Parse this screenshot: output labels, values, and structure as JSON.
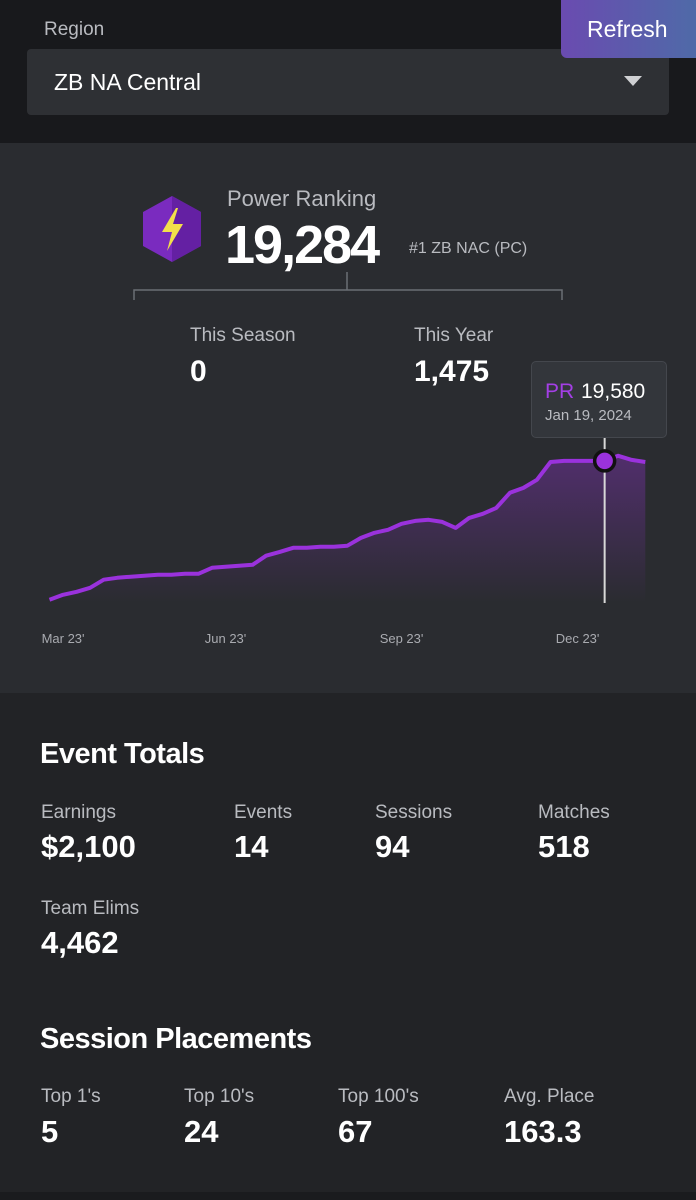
{
  "region": {
    "label": "Region",
    "value": "ZB NA Central"
  },
  "refresh_button": "Refresh",
  "power_ranking": {
    "label": "Power Ranking",
    "value": "19,284",
    "rank": "#1 ZB NAC (PC)",
    "this_season": {
      "label": "This Season",
      "value": "0"
    },
    "this_year": {
      "label": "This Year",
      "value": "1,475"
    }
  },
  "chart_data": {
    "type": "line",
    "color": "#9a32dc",
    "categories": [
      null,
      "Mar 23'",
      null,
      null,
      null,
      null,
      null,
      null,
      null,
      null,
      null,
      null,
      null,
      "Jun 23'",
      null,
      null,
      null,
      null,
      null,
      null,
      null,
      null,
      null,
      null,
      null,
      null,
      "Sep 23'",
      null,
      null,
      null,
      null,
      null,
      null,
      null,
      null,
      null,
      null,
      null,
      null,
      "Dec 23'",
      null,
      null,
      null,
      null,
      null
    ],
    "values": [
      13050,
      13280,
      13420,
      13610,
      13990,
      14080,
      14130,
      14180,
      14220,
      14220,
      14270,
      14270,
      14550,
      14600,
      14650,
      14690,
      15120,
      15300,
      15490,
      15490,
      15540,
      15540,
      15590,
      15960,
      16200,
      16340,
      16620,
      16760,
      16810,
      16710,
      16430,
      16900,
      17090,
      17370,
      18080,
      18310,
      18690,
      19530,
      19580,
      19580,
      19580,
      19580,
      19820,
      19630,
      19530
    ],
    "ylim": [
      12000,
      20000
    ],
    "tooltip": {
      "label": "PR",
      "value": "19,580",
      "date": "Jan 19, 2024"
    }
  },
  "event_totals": {
    "title": "Event Totals",
    "stats": [
      {
        "label": "Earnings",
        "value": "$2,100"
      },
      {
        "label": "Events",
        "value": "14"
      },
      {
        "label": "Sessions",
        "value": "94"
      },
      {
        "label": "Matches",
        "value": "518"
      },
      {
        "label": "Team Elims",
        "value": "4,462"
      }
    ]
  },
  "session_placements": {
    "title": "Session Placements",
    "stats": [
      {
        "label": "Top 1's",
        "value": "5"
      },
      {
        "label": "Top 10's",
        "value": "24"
      },
      {
        "label": "Top 100's",
        "value": "67"
      },
      {
        "label": "Avg. Place",
        "value": "163.3"
      }
    ]
  }
}
